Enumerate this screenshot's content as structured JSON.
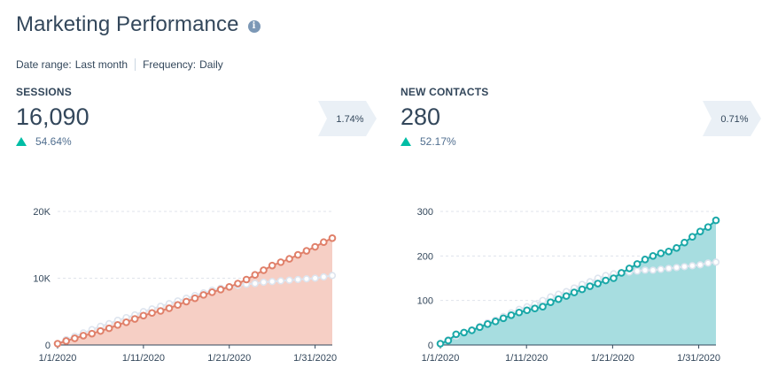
{
  "header": {
    "title": "Marketing Performance",
    "info_icon": "info-icon"
  },
  "filters": {
    "date_range_label": "Date range:",
    "date_range_value": "Last month",
    "frequency_label": "Frequency:",
    "frequency_value": "Daily"
  },
  "metrics": [
    {
      "label": "SESSIONS",
      "value": "16,090",
      "change": "54.64%",
      "change_direction": "up",
      "comparison_badge": "1.74%"
    },
    {
      "label": "NEW CONTACTS",
      "value": "280",
      "change": "52.17%",
      "change_direction": "up",
      "comparison_badge": "0.71%"
    }
  ],
  "colors": {
    "sessions_line": "#e0806a",
    "sessions_fill": "#f6cfc5",
    "contacts_line": "#1aa8a8",
    "contacts_fill": "#a7dde0",
    "previous_line": "#dde4ee",
    "up_arrow": "#00bda5",
    "badge_bg": "#eaf0f6"
  },
  "chart_data": [
    {
      "type": "line",
      "x_ticks": [
        "1/1/2020",
        "1/11/2020",
        "1/21/2020",
        "1/31/2020"
      ],
      "y_ticks": [
        "0",
        "10K",
        "20K"
      ],
      "ylim": [
        0,
        20000
      ],
      "grid": true,
      "series": [
        {
          "values": [
            200,
            600,
            1000,
            1400,
            1700,
            2100,
            2500,
            3000,
            3400,
            3900,
            4400,
            4800,
            5100,
            5500,
            6000,
            6500,
            7000,
            7500,
            7900,
            8300,
            8700,
            9200,
            9800,
            10500,
            11200,
            11900,
            12400,
            12900,
            13500,
            14100,
            14700,
            15400,
            16000
          ]
        },
        {
          "values": [
            200,
            800,
            1300,
            1800,
            2300,
            2800,
            3200,
            3700,
            4100,
            4500,
            5000,
            5400,
            5800,
            6200,
            6600,
            7000,
            7400,
            7800,
            8200,
            8500,
            8700,
            8900,
            9100,
            9200,
            9400,
            9500,
            9600,
            9700,
            9800,
            9900,
            10000,
            10200,
            10400
          ]
        }
      ]
    },
    {
      "type": "line",
      "x_ticks": [
        "1/1/2020",
        "1/11/2020",
        "1/21/2020",
        "1/31/2020"
      ],
      "y_ticks": [
        "0",
        "100",
        "200",
        "300"
      ],
      "ylim": [
        0,
        300
      ],
      "grid": true,
      "series": [
        {
          "values": [
            3,
            10,
            24,
            28,
            33,
            40,
            47,
            53,
            60,
            67,
            73,
            78,
            82,
            86,
            96,
            103,
            110,
            118,
            125,
            132,
            138,
            145,
            150,
            162,
            172,
            182,
            192,
            200,
            206,
            210,
            218,
            230,
            243,
            255,
            265,
            280
          ]
        },
        {
          "values": [
            3,
            12,
            20,
            28,
            34,
            42,
            50,
            56,
            64,
            72,
            80,
            86,
            92,
            100,
            108,
            114,
            120,
            128,
            136,
            142,
            150,
            156,
            160,
            162,
            164,
            166,
            168,
            168,
            170,
            172,
            174,
            176,
            178,
            180,
            184,
            186
          ]
        }
      ]
    }
  ]
}
